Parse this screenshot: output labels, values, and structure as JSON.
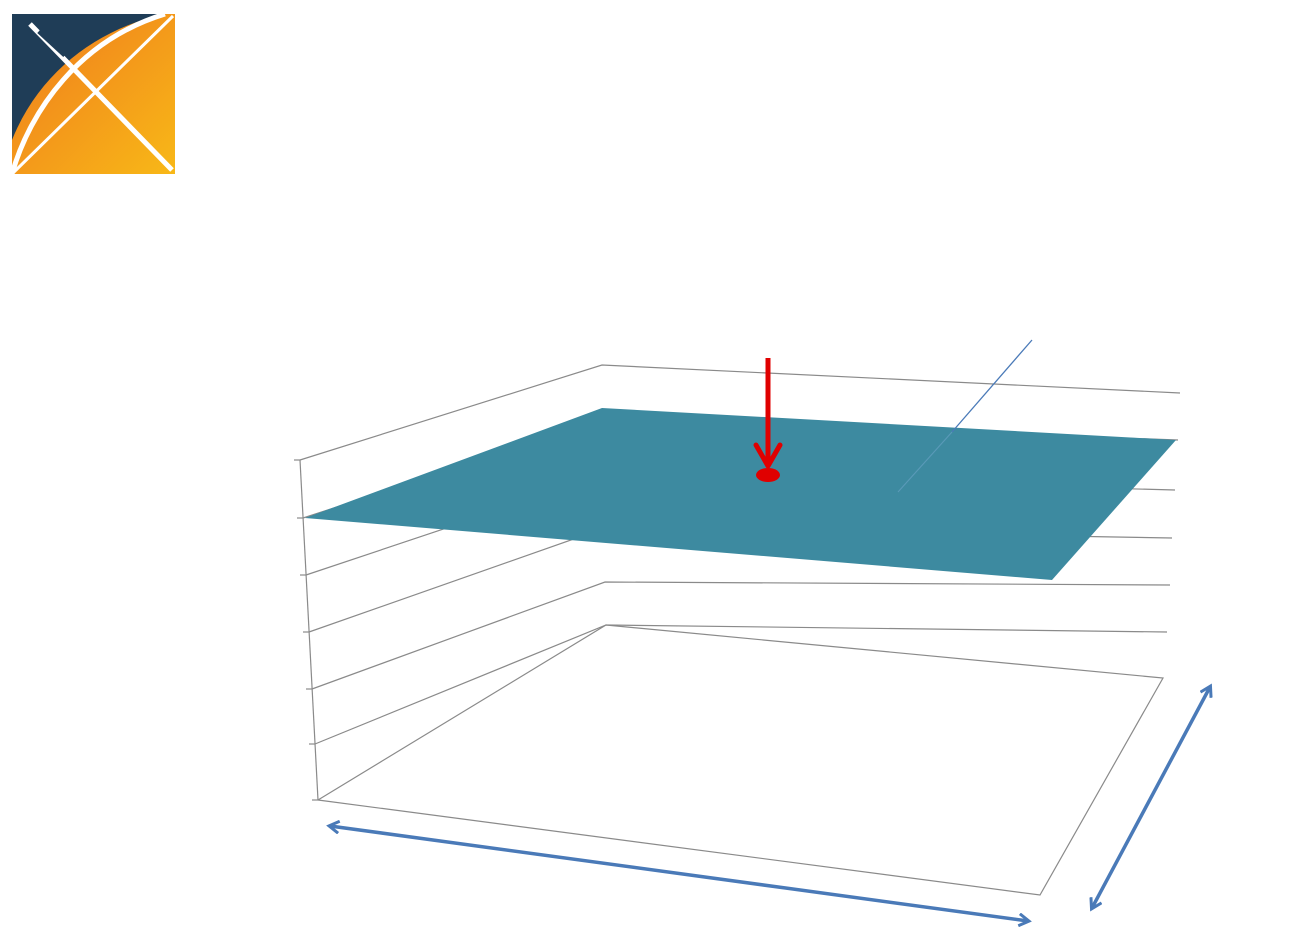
{
  "logo": {
    "icon": "x-logo-icon",
    "colors": {
      "dark": "#1f3d57",
      "orange": "#ef7a1e",
      "yellow": "#f8b817",
      "white": "#ffffff"
    }
  },
  "diagram": {
    "plane_color": "#3d8aa0",
    "wireframe_color": "#8a8a8a",
    "pointer_color": "#e00000",
    "dimension_arrow_color": "#4a7ab8",
    "leader_line_color": "#4a7ab8",
    "y_tick_count": 7
  }
}
